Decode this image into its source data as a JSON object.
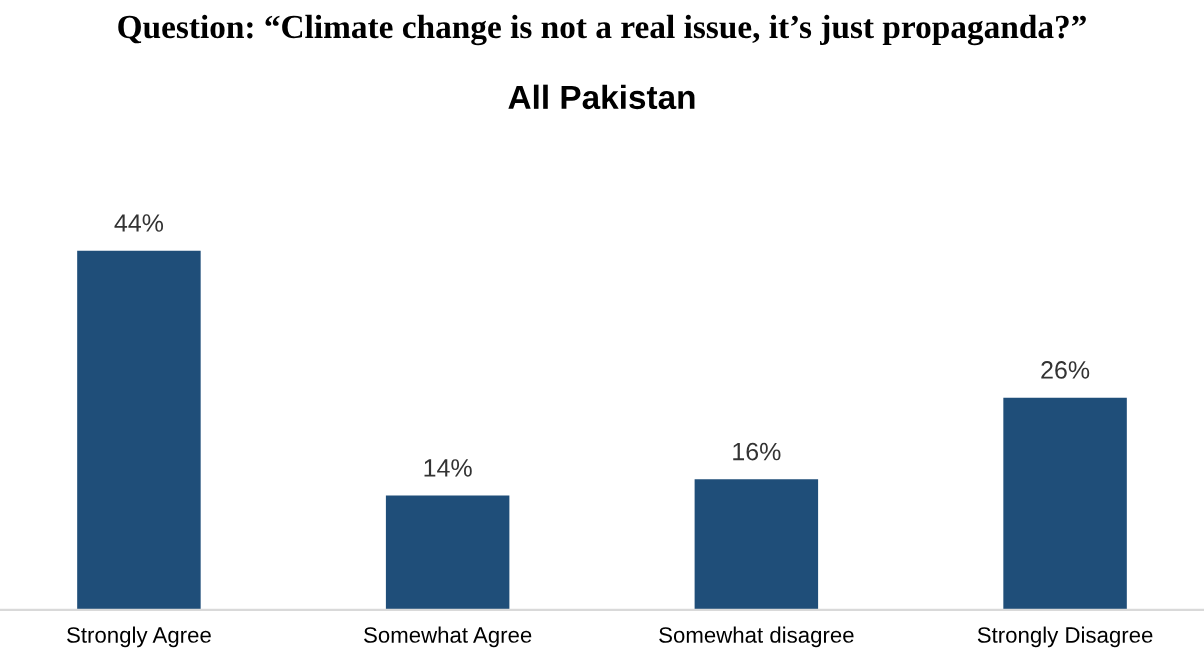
{
  "chart_data": {
    "type": "bar",
    "title": "Question: “Climate change is not a real issue, it’s just propaganda?”",
    "subtitle": "All Pakistan",
    "categories": [
      "Strongly Agree",
      "Somewhat Agree",
      "Somewhat disagree",
      "Strongly Disagree"
    ],
    "values": [
      44,
      14,
      16,
      26
    ],
    "color": "#1f4e79",
    "value_labels": [
      "44%",
      "14%",
      "16%",
      "26%"
    ],
    "grid": false,
    "legend": false
  }
}
